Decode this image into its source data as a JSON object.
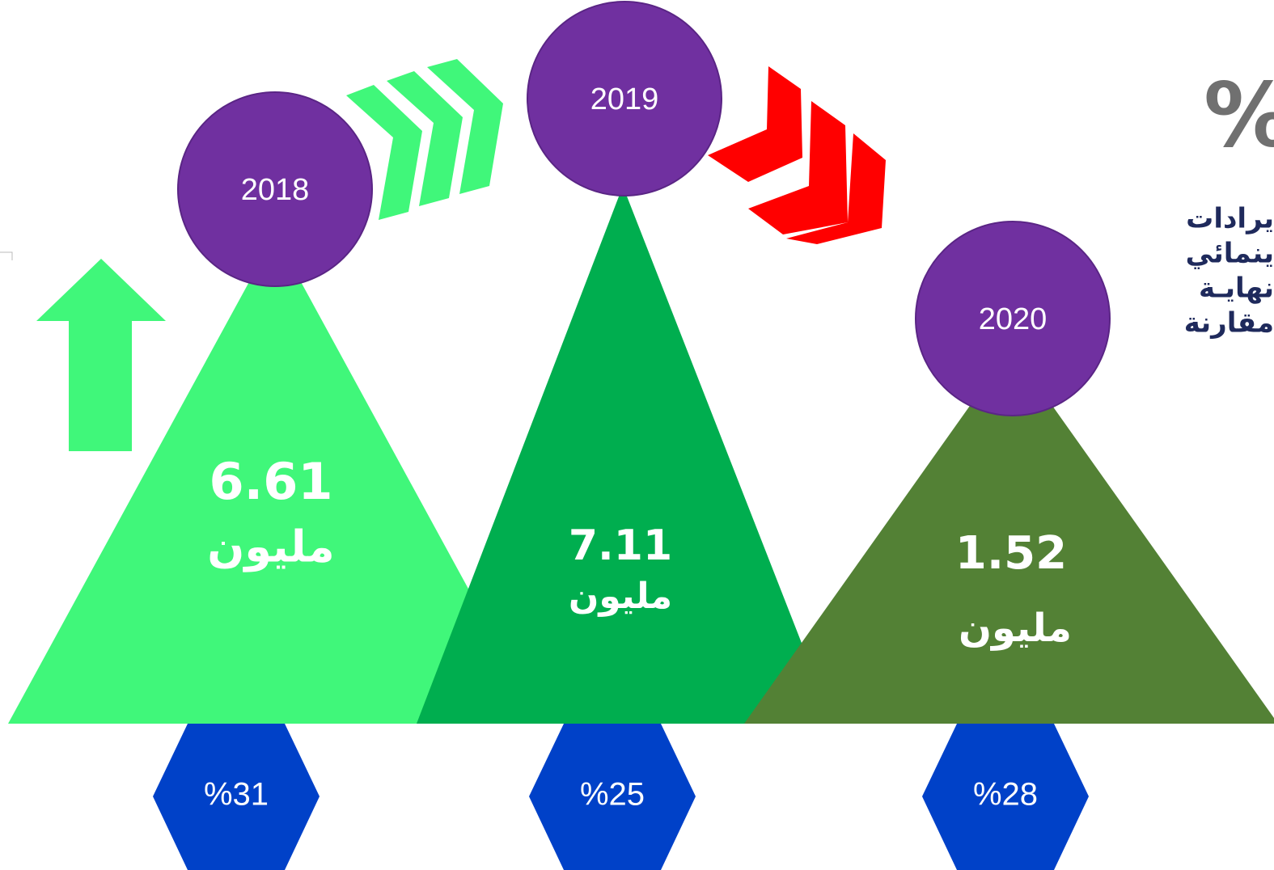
{
  "items": [
    {
      "year": "2018",
      "value": "6.61",
      "unit": "مليون",
      "percent": "%31"
    },
    {
      "year": "2019",
      "value": "7.11",
      "unit": "مليون",
      "percent": "%25"
    },
    {
      "year": "2020",
      "value": "1.52",
      "unit": "مليون",
      "percent": "%28"
    }
  ],
  "side": {
    "symbol": "%",
    "lines": [
      "يرادات",
      "ينمائي",
      "نهايـة",
      "مقارنة"
    ]
  }
}
